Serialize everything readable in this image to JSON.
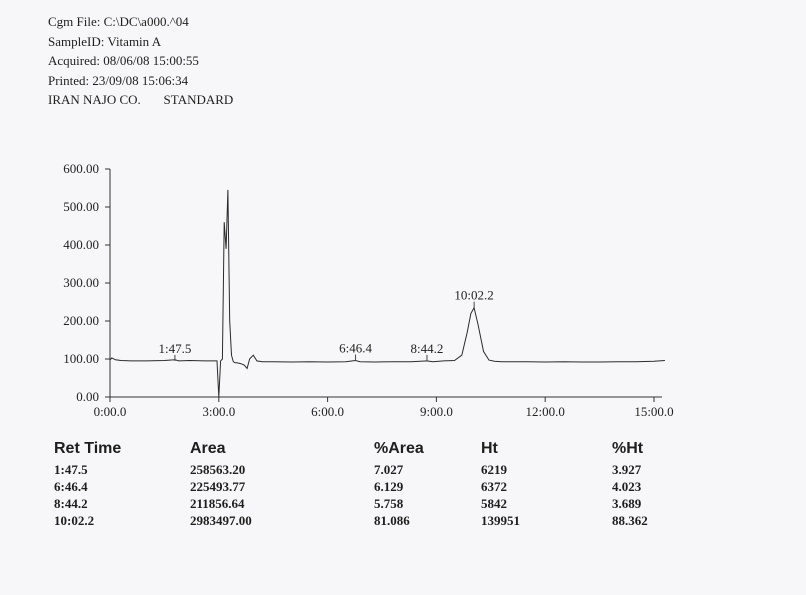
{
  "header": {
    "lines": [
      "Cgm File: C:\\DC\\a000.^04",
      "SampleID: Vitamin A",
      "Acquired: 08/06/08 15:00:55",
      "Printed: 23/09/08 15:06:34",
      "IRAN NAJO CO.       STANDARD"
    ]
  },
  "chart_data": {
    "type": "line",
    "title": "",
    "xlabel": "",
    "ylabel": "",
    "xlim": [
      0,
      15
    ],
    "ylim": [
      0,
      600
    ],
    "x_ticks": [
      0,
      3,
      6,
      9,
      12,
      15
    ],
    "x_tick_labels": [
      "0:00.0",
      "3:00.0",
      "6:00.0",
      "9:00.0",
      "12:00.0",
      "15:00.0"
    ],
    "y_ticks": [
      0,
      100,
      200,
      300,
      400,
      500,
      600
    ],
    "y_tick_labels": [
      "0.00",
      "100.00",
      "200.00",
      "300.00",
      "400.00",
      "500.00",
      "600.00"
    ],
    "grid": false,
    "series": [
      {
        "x": [
          0,
          0.05,
          0.15,
          0.3,
          0.6,
          1.0,
          1.5,
          1.79,
          1.9,
          2.2,
          2.6,
          2.95,
          3.0,
          3.05,
          3.1,
          3.15,
          3.2,
          3.25,
          3.3,
          3.35,
          3.4,
          3.45,
          3.5,
          3.6,
          3.7,
          3.78,
          3.85,
          3.95,
          4.05,
          4.2,
          4.5,
          5.0,
          5.5,
          6.0,
          6.5,
          6.77,
          6.9,
          7.3,
          7.8,
          8.3,
          8.74,
          8.9,
          9.2,
          9.5,
          9.7,
          9.85,
          9.95,
          10.04,
          10.15,
          10.3,
          10.45,
          10.6,
          10.8,
          11.0,
          11.5,
          12.0,
          12.5,
          13.0,
          13.5,
          14.0,
          14.5,
          15.0,
          15.3
        ],
        "y": [
          97,
          103,
          98,
          96,
          95,
          95,
          96,
          98,
          95,
          96,
          95,
          95,
          0,
          95,
          100,
          460,
          390,
          545,
          200,
          110,
          93,
          90,
          90,
          88,
          84,
          75,
          100,
          110,
          95,
          93,
          93,
          92,
          93,
          92,
          93,
          96,
          93,
          92,
          93,
          93,
          95,
          93,
          95,
          96,
          110,
          170,
          220,
          235,
          190,
          120,
          97,
          94,
          93,
          93,
          93,
          92,
          93,
          92,
          92,
          93,
          93,
          94,
          96
        ]
      }
    ],
    "annotations": [
      {
        "text": "1:47.5",
        "x": 1.79,
        "y": 95
      },
      {
        "text": "6:46.4",
        "x": 6.77,
        "y": 96
      },
      {
        "text": "8:44.2",
        "x": 8.74,
        "y": 95
      },
      {
        "text": "10:02.2",
        "x": 10.04,
        "y": 235
      }
    ]
  },
  "results": {
    "headers": [
      "Ret Time",
      "Area",
      "%Area",
      "Ht",
      "%Ht"
    ],
    "rows": [
      [
        "1:47.5",
        "258563.20",
        "7.027",
        "6219",
        "3.927"
      ],
      [
        "6:46.4",
        "225493.77",
        "6.129",
        "6372",
        "4.023"
      ],
      [
        "8:44.2",
        "211856.64",
        "5.758",
        "5842",
        "3.689"
      ],
      [
        "10:02.2",
        "2983497.00",
        "81.086",
        "139951",
        "88.362"
      ]
    ]
  }
}
